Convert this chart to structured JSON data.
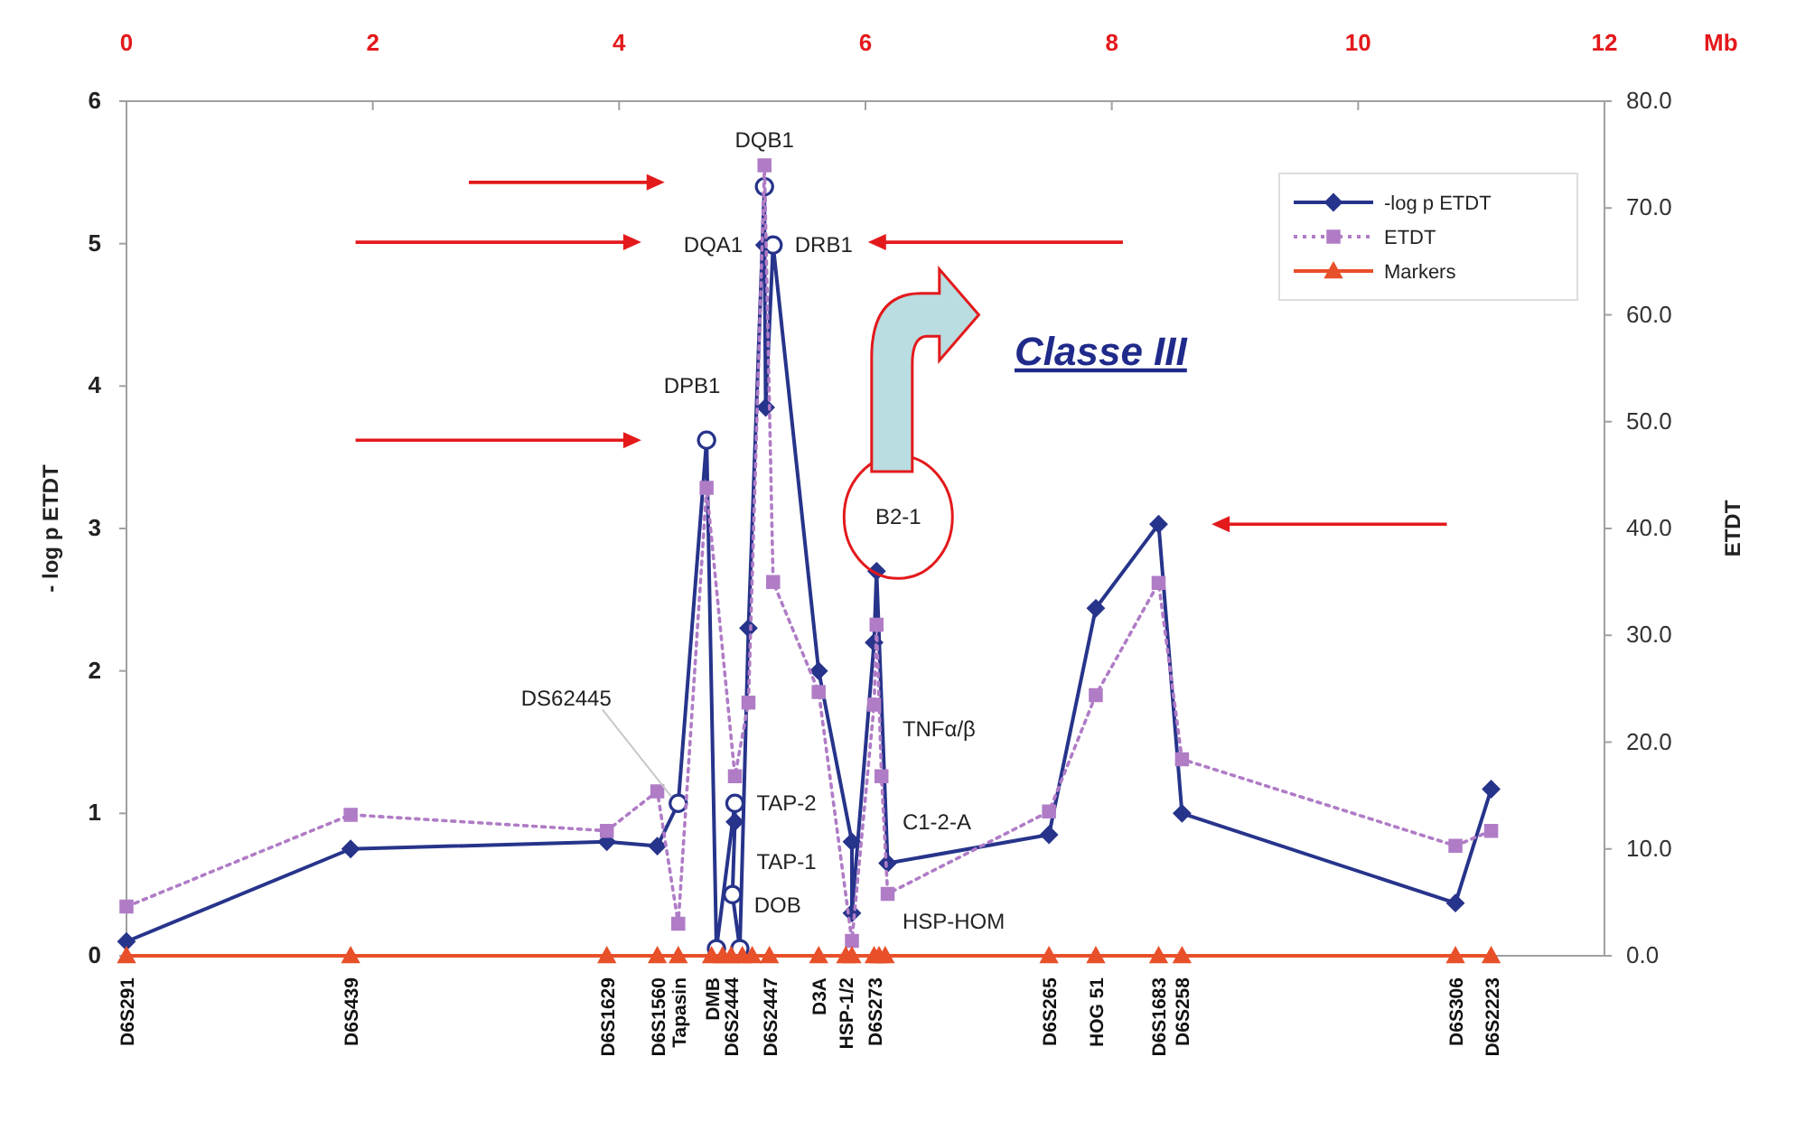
{
  "chart_data": {
    "type": "line",
    "ylabel": "- log p ETDT",
    "y2label": "ETDT",
    "xlabel": "Mb",
    "xlim": [
      0,
      12
    ],
    "ylim": [
      0,
      6
    ],
    "y2lim": [
      0,
      80
    ],
    "xticks": [
      0,
      2,
      4,
      6,
      8,
      10,
      12
    ],
    "yticks": [
      0,
      1,
      2,
      3,
      4,
      5,
      6
    ],
    "y2ticks": [
      {
        "value": 0,
        "label": "0.0"
      },
      {
        "value": 10,
        "label": "10.0"
      },
      {
        "value": 20,
        "label": "20.0"
      },
      {
        "value": 30,
        "label": "30.0"
      },
      {
        "value": 40,
        "label": "40.0"
      },
      {
        "value": 50,
        "label": "50.0"
      },
      {
        "value": 60,
        "label": "60.0"
      },
      {
        "value": 70,
        "label": "70.0"
      },
      {
        "value": 80,
        "label": "80.0"
      }
    ],
    "legend": "top right",
    "series": [
      {
        "name": "-log p ETDT",
        "color": "#27348b",
        "marker": "diamond",
        "line_style": "solid",
        "x": [
          0,
          1.82,
          3.9,
          4.31,
          4.48,
          4.71,
          4.79,
          4.94,
          4.94,
          4.92,
          4.98,
          5.05,
          5.18,
          5.18,
          5.19,
          5.25,
          5.62,
          5.89,
          5.89,
          6.07,
          6.09,
          6.18,
          7.49,
          7.87,
          8.38,
          8.57,
          10.79,
          11.08
        ],
        "values": [
          0.1,
          0.75,
          0.8,
          0.77,
          1.07,
          3.62,
          0.05,
          1.07,
          0.94,
          0.43,
          0.05,
          2.3,
          5.4,
          4.99,
          3.85,
          4.99,
          2.0,
          0.8,
          0.3,
          2.2,
          2.7,
          0.65,
          0.85,
          2.44,
          3.03,
          1.0,
          0.37,
          1.17
        ]
      },
      {
        "type": "scatter",
        "color": "#27348b",
        "marker": "circle",
        "x": [
          4.48,
          4.71,
          4.79,
          4.94,
          4.92,
          4.98,
          5.18,
          5.25
        ],
        "values": [
          1.07,
          3.62,
          0.05,
          1.07,
          0.43,
          0.05,
          5.4,
          4.99
        ]
      },
      {
        "name": "ETDT",
        "axis": "y2",
        "color": "#b07cc6",
        "marker": "square",
        "line_style": "dotted",
        "x": [
          0,
          1.82,
          3.9,
          4.31,
          4.48,
          4.71,
          4.94,
          5.05,
          5.18,
          5.25,
          5.62,
          5.89,
          6.07,
          6.09,
          6.13,
          6.18,
          7.49,
          7.87,
          8.38,
          8.57,
          10.79,
          11.08
        ],
        "values": [
          4.6,
          13.2,
          11.7,
          15.4,
          3,
          43.8,
          16.8,
          23.7,
          74,
          35,
          24.7,
          1.4,
          23.5,
          31,
          16.8,
          5.8,
          13.5,
          24.4,
          34.9,
          18.4,
          10.3,
          11.7
        ]
      },
      {
        "name": "Markers",
        "color": "#e8502a",
        "marker": "triangle",
        "line_style": "solid",
        "x": [
          0,
          1.82,
          3.9,
          4.31,
          4.48,
          4.75,
          4.84,
          4.91,
          5.0,
          5.08,
          5.22,
          5.62,
          5.84,
          5.89,
          6.07,
          6.11,
          6.16,
          7.49,
          7.87,
          8.38,
          8.57,
          10.79,
          11.08
        ],
        "values": [
          0,
          0,
          0,
          0,
          0,
          0,
          0,
          0,
          0,
          0,
          0,
          0,
          0,
          0,
          0,
          0,
          0,
          0,
          0,
          0,
          0,
          0,
          0
        ]
      }
    ],
    "annotations": [
      {
        "text": "DQB1",
        "x": 5.18,
        "y": 5.4
      },
      {
        "text": "DQA1",
        "x": 5.18,
        "y": 4.99
      },
      {
        "text": "DRB1",
        "x": 5.25,
        "y": 4.99
      },
      {
        "text": "DPB1",
        "x": 4.71,
        "y": 3.62
      },
      {
        "text": "DS62445",
        "x": 4.48,
        "y": 1.07
      },
      {
        "text": "TAP-2",
        "x": 4.94,
        "y": 1.07
      },
      {
        "text": "TAP-1",
        "x": 4.94,
        "y": 0.94
      },
      {
        "text": "DOB",
        "x": 4.92,
        "y": 0.43
      },
      {
        "text": "B2-1",
        "x": 6.09,
        "y": 2.7
      },
      "TNFα/β",
      "C1-2-A",
      "HSP-HOM",
      "Classe III",
      {
        "text": "D6S291",
        "x": 0,
        "y": 0
      },
      {
        "text": "D6S439",
        "x": 1.82,
        "y": 0
      },
      {
        "text": "D6S1629",
        "x": 3.9,
        "y": 0
      },
      {
        "text": "D6S1560",
        "x": 4.31,
        "y": 0
      },
      {
        "text": "Tapasin",
        "x": 4.48,
        "y": 0
      },
      {
        "text": "DMB",
        "x": 4.75,
        "y": 0
      },
      {
        "text": "D6S2444",
        "x": 4.91,
        "y": 0
      },
      {
        "text": "D6S2447",
        "x": 5.22,
        "y": 0
      },
      {
        "text": "D3A",
        "x": 5.62,
        "y": 0
      },
      {
        "text": "HSP-1/2",
        "x": 5.84,
        "y": 0
      },
      {
        "text": "D6S273",
        "x": 6.07,
        "y": 0
      },
      {
        "text": "D6S265",
        "x": 7.49,
        "y": 0
      },
      {
        "text": "HOG 51",
        "x": 7.87,
        "y": 0
      },
      {
        "text": "D6S1683",
        "x": 8.38,
        "y": 0
      },
      {
        "text": "D6S258",
        "x": 8.57,
        "y": 0
      },
      {
        "text": "D6S306",
        "x": 10.79,
        "y": 0
      },
      {
        "text": "D6S2223",
        "x": 11.08,
        "y": 0
      }
    ]
  }
}
